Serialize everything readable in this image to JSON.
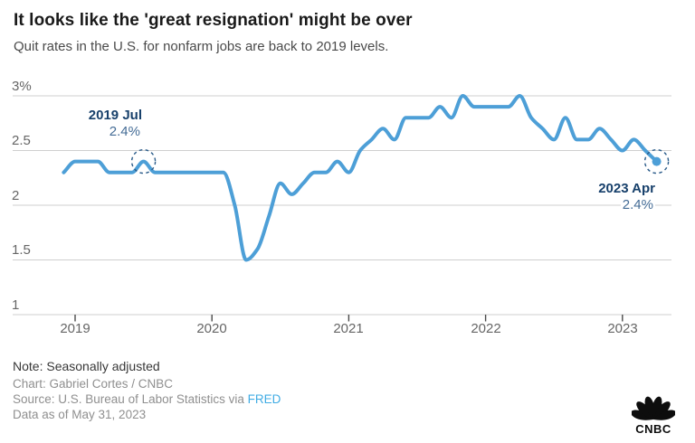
{
  "header": {
    "title": "It looks like the 'great resignation' might be over",
    "subtitle": "Quit rates in the U.S. for nonfarm jobs are back to 2019 levels."
  },
  "chart_data": {
    "type": "line",
    "title": "It looks like the 'great resignation' might be over",
    "series_name": "Quit rate, U.S. nonfarm jobs, seasonally adjusted (%)",
    "frequency": "monthly",
    "x_start": "2018-12",
    "x_end": "2023-04",
    "values": [
      2.3,
      2.4,
      2.4,
      2.4,
      2.3,
      2.3,
      2.3,
      2.4,
      2.3,
      2.3,
      2.3,
      2.3,
      2.3,
      2.3,
      2.3,
      2.0,
      1.5,
      1.6,
      1.9,
      2.2,
      2.1,
      2.2,
      2.3,
      2.3,
      2.4,
      2.3,
      2.5,
      2.6,
      2.7,
      2.6,
      2.8,
      2.8,
      2.8,
      2.9,
      2.8,
      3.0,
      2.9,
      2.9,
      2.9,
      2.9,
      3.0,
      2.8,
      2.7,
      2.6,
      2.8,
      2.6,
      2.6,
      2.7,
      2.6,
      2.5,
      2.6,
      2.5,
      2.4
    ],
    "x_tick_labels": [
      "2019",
      "2020",
      "2021",
      "2022",
      "2023"
    ],
    "y_tick_labels": [
      "3%",
      "2.5",
      "2",
      "1.5",
      "1"
    ],
    "y_ticks": [
      3,
      2.5,
      2,
      1.5,
      1
    ],
    "ylim": [
      1,
      3.05
    ],
    "grid": "horizontal",
    "legend": "none",
    "line_color": "#4d9fd7",
    "annotation_color": "#17406b",
    "annotations": [
      {
        "label": "2019 Jul",
        "value_label": "2.4%",
        "index": 7,
        "value": 2.4
      },
      {
        "label": "2023 Apr",
        "value_label": "2.4%",
        "index": 52,
        "value": 2.4
      }
    ]
  },
  "footer": {
    "note": "Note: Seasonally adjusted",
    "credit": "Chart: Gabriel Cortes / CNBC",
    "source_prefix": "Source: U.S. Bureau of Labor Statistics via ",
    "source_link": "FRED",
    "data_as_of": "Data as of May 31, 2023"
  },
  "logo": {
    "wordmark": "CNBC"
  }
}
